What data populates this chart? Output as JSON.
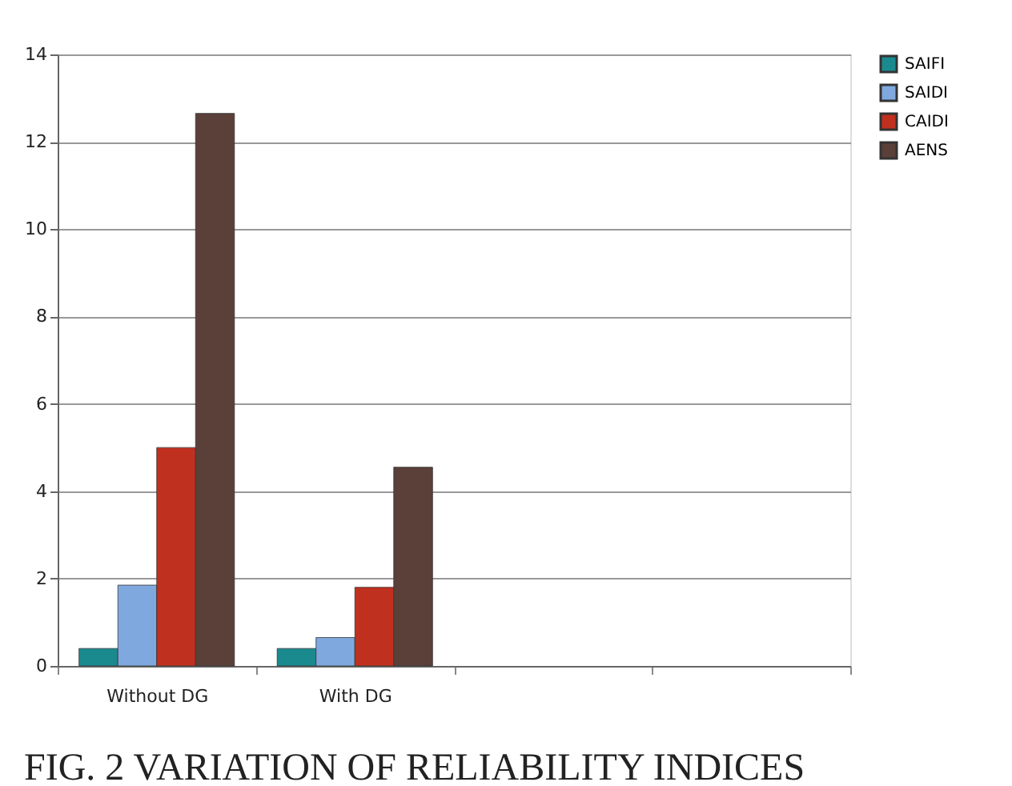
{
  "chart_data": {
    "type": "bar",
    "title": "FIG. 2   VARIATION OF RELIABILITY INDICES",
    "categories": [
      "Without DG",
      "With DG",
      null,
      null
    ],
    "series": [
      {
        "name": "SAIFI",
        "color": "#1a8a8f",
        "values": [
          0.4,
          0.4,
          null,
          null
        ]
      },
      {
        "name": "SAIDI",
        "color": "#7fa8de",
        "values": [
          1.85,
          0.65,
          null,
          null
        ]
      },
      {
        "name": "CAIDI",
        "color": "#c0301f",
        "values": [
          5.0,
          1.8,
          null,
          null
        ]
      },
      {
        "name": "AENS",
        "color": "#5a4038",
        "values": [
          12.65,
          4.55,
          null,
          null
        ]
      }
    ],
    "ylim": [
      0,
      14
    ],
    "yticks": [
      0,
      2,
      4,
      6,
      8,
      10,
      12,
      14
    ],
    "grid": "y",
    "legend": "right"
  }
}
